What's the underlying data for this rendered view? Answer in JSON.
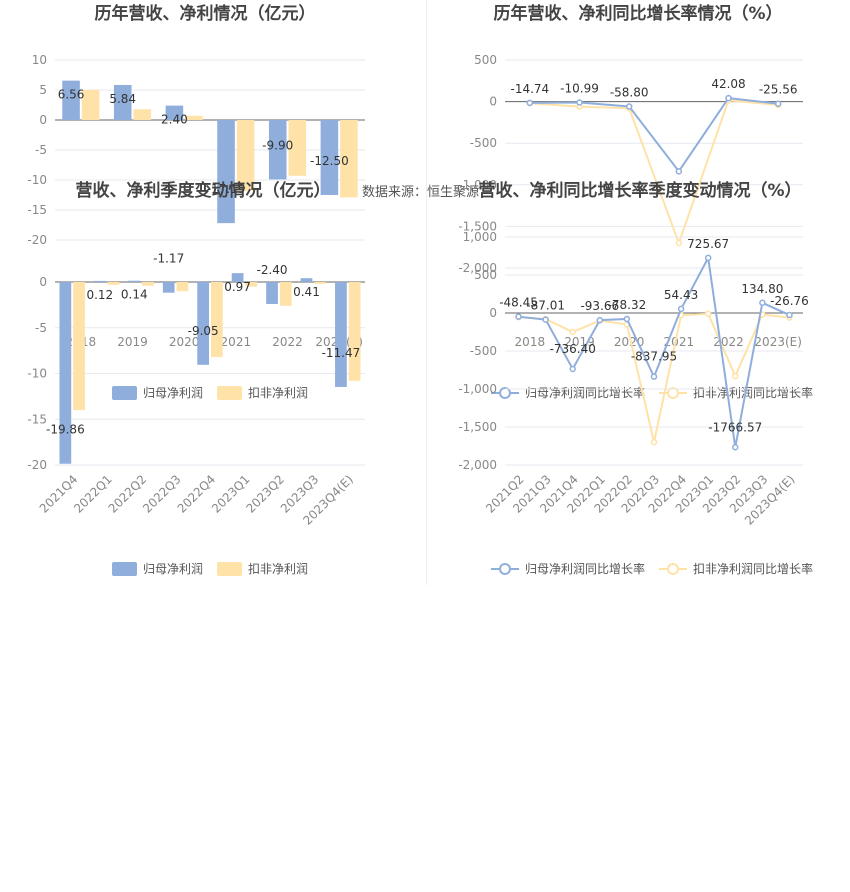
{
  "source": "数据来源：恒生聚源",
  "colors": {
    "series1": "#8FAEDC",
    "series2": "#FFE2A8",
    "grid": "#E6E9EF",
    "axis": "#666666"
  },
  "chart_data": [
    {
      "type": "bar",
      "title": "历年营收、净利情况（亿元）",
      "categories": [
        "2018",
        "2019",
        "2020",
        "2021",
        "2022",
        "2023(E)"
      ],
      "ylim": [
        -20,
        10
      ],
      "yticks": [
        10,
        5,
        0,
        -5,
        -10,
        -15,
        -20
      ],
      "series": [
        {
          "name": "归母净利润",
          "values": [
            6.56,
            5.84,
            2.4,
            -17.19,
            -9.9,
            -12.5
          ],
          "labels": [
            "6.56",
            "5.84",
            "2.40",
            "-17.19",
            "-9.90",
            "-12.50"
          ]
        },
        {
          "name": "扣非净利润",
          "values": [
            5.0,
            1.8,
            0.7,
            -11.8,
            -9.3,
            -12.9
          ],
          "labels": []
        }
      ],
      "legend": "bottom"
    },
    {
      "type": "line",
      "title": "历年营收、净利同比增长率情况（%）",
      "categories": [
        "2018",
        "2019",
        "2020",
        "2021",
        "2022",
        "2023(E)"
      ],
      "ylim": [
        -2000,
        500
      ],
      "yticks": [
        500,
        0,
        -500,
        -1000,
        -1500,
        -2000
      ],
      "ytick_labels": [
        "500",
        "0",
        "-500",
        "-1,000",
        "-1,500",
        "-2,000"
      ],
      "series": [
        {
          "name": "归母净利润同比增长率",
          "values": [
            -14.74,
            -10.99,
            -58.8,
            -837.95,
            42.08,
            -25.56
          ],
          "labels": [
            "-14.74",
            "-10.99",
            "-58.80",
            "",
            "42.08",
            "-25.56"
          ]
        },
        {
          "name": "扣非净利润同比增长率",
          "values": [
            -20,
            -60,
            -80,
            -1700,
            15,
            -40
          ],
          "labels": []
        }
      ],
      "legend": "bottom"
    },
    {
      "type": "bar",
      "title": "营收、净利季度变动情况（亿元）",
      "categories": [
        "2021Q4",
        "2022Q1",
        "2022Q2",
        "2022Q3",
        "2022Q4",
        "2023Q1",
        "2023Q2",
        "2023Q3",
        "2023Q4(E)"
      ],
      "ylim": [
        -20,
        0
      ],
      "yticks": [
        0,
        -5,
        -10,
        -15,
        -20
      ],
      "series": [
        {
          "name": "归母净利润",
          "values": [
            -19.86,
            0.12,
            0.14,
            -1.17,
            -9.05,
            0.97,
            -2.4,
            0.41,
            -11.47
          ],
          "labels": [
            "-19.86",
            "0.12",
            "0.14",
            "-1.17",
            "-9.05",
            "0.97",
            "-2.40",
            "0.41",
            "-11.47"
          ]
        },
        {
          "name": "扣非净利润",
          "values": [
            -14.0,
            -0.3,
            -0.4,
            -1.0,
            -8.2,
            -0.5,
            -2.6,
            -0.2,
            -10.8
          ],
          "labels": []
        }
      ],
      "legend": "bottom"
    },
    {
      "type": "line",
      "title": "营收、净利同比增长率季度变动情况（%）",
      "categories": [
        "2021Q2",
        "2021Q3",
        "2021Q4",
        "2022Q1",
        "2022Q2",
        "2022Q3",
        "2022Q4",
        "2023Q1",
        "2023Q2",
        "2023Q3",
        "2023Q4(E)"
      ],
      "ylim": [
        -2000,
        1000
      ],
      "yticks": [
        1000,
        500,
        0,
        -500,
        -1000,
        -1500,
        -2000
      ],
      "ytick_labels": [
        "1,000",
        "500",
        "0",
        "-500",
        "-1,000",
        "-1,500",
        "-2,000"
      ],
      "series": [
        {
          "name": "归母净利润同比增长率",
          "values": [
            -48.45,
            -87.01,
            -736.4,
            -93.66,
            -78.32,
            -837.95,
            54.43,
            725.67,
            -1766.57,
            134.8,
            -26.76
          ],
          "labels": [
            "-48.45",
            "-87.01",
            "-736.40",
            "-93.66",
            "-78.32",
            "-837.95",
            "54.43",
            "725.67",
            "-1766.57",
            "134.80",
            "-26.76"
          ]
        },
        {
          "name": "扣非净利润同比增长率",
          "values": [
            -55,
            -80,
            -250,
            -100,
            -150,
            -1700,
            -30,
            -10,
            -830,
            -20,
            -60
          ],
          "labels": []
        }
      ],
      "legend": "bottom"
    }
  ]
}
